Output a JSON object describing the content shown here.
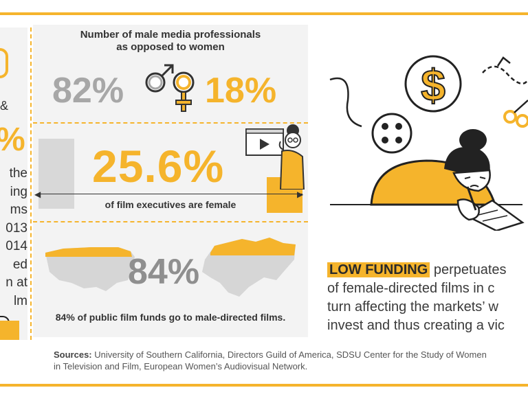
{
  "left_column": {
    "amp": "&",
    "big_pct": "%",
    "lines": [
      "the",
      "ing",
      "ms",
      "013",
      "014",
      "ed",
      "n at",
      "lm"
    ]
  },
  "middle": {
    "title_line1": "Number of male media professionals",
    "title_line2": "as opposed to women",
    "male_pct": "82%",
    "female_pct": "18%",
    "exec_pct": "25.6%",
    "exec_caption": "of film executives are female",
    "funds_pct": "84%",
    "funds_caption": "84% of public film funds go to male-directed films."
  },
  "right": {
    "highlight": "LOW FUNDING",
    "line1_rest": " perpetuates",
    "line2": "of female-directed films in c",
    "line3": "turn affecting the markets’ w",
    "line4": "invest and thus creating a vic"
  },
  "sources": {
    "label": "Sources:",
    "text": " University of Southern California, Directors Guild of America, SDSU Center for the Study of Women in Television and Film, European Women’s Audiovisual Network."
  },
  "colors": {
    "accent": "#f5b42c",
    "grey": "#a7a7a7",
    "panel": "#f3f3f3"
  },
  "icons": [
    "male-symbol-icon",
    "female-symbol-icon",
    "dollar-icon",
    "film-reel-icon",
    "scissors-icon"
  ]
}
